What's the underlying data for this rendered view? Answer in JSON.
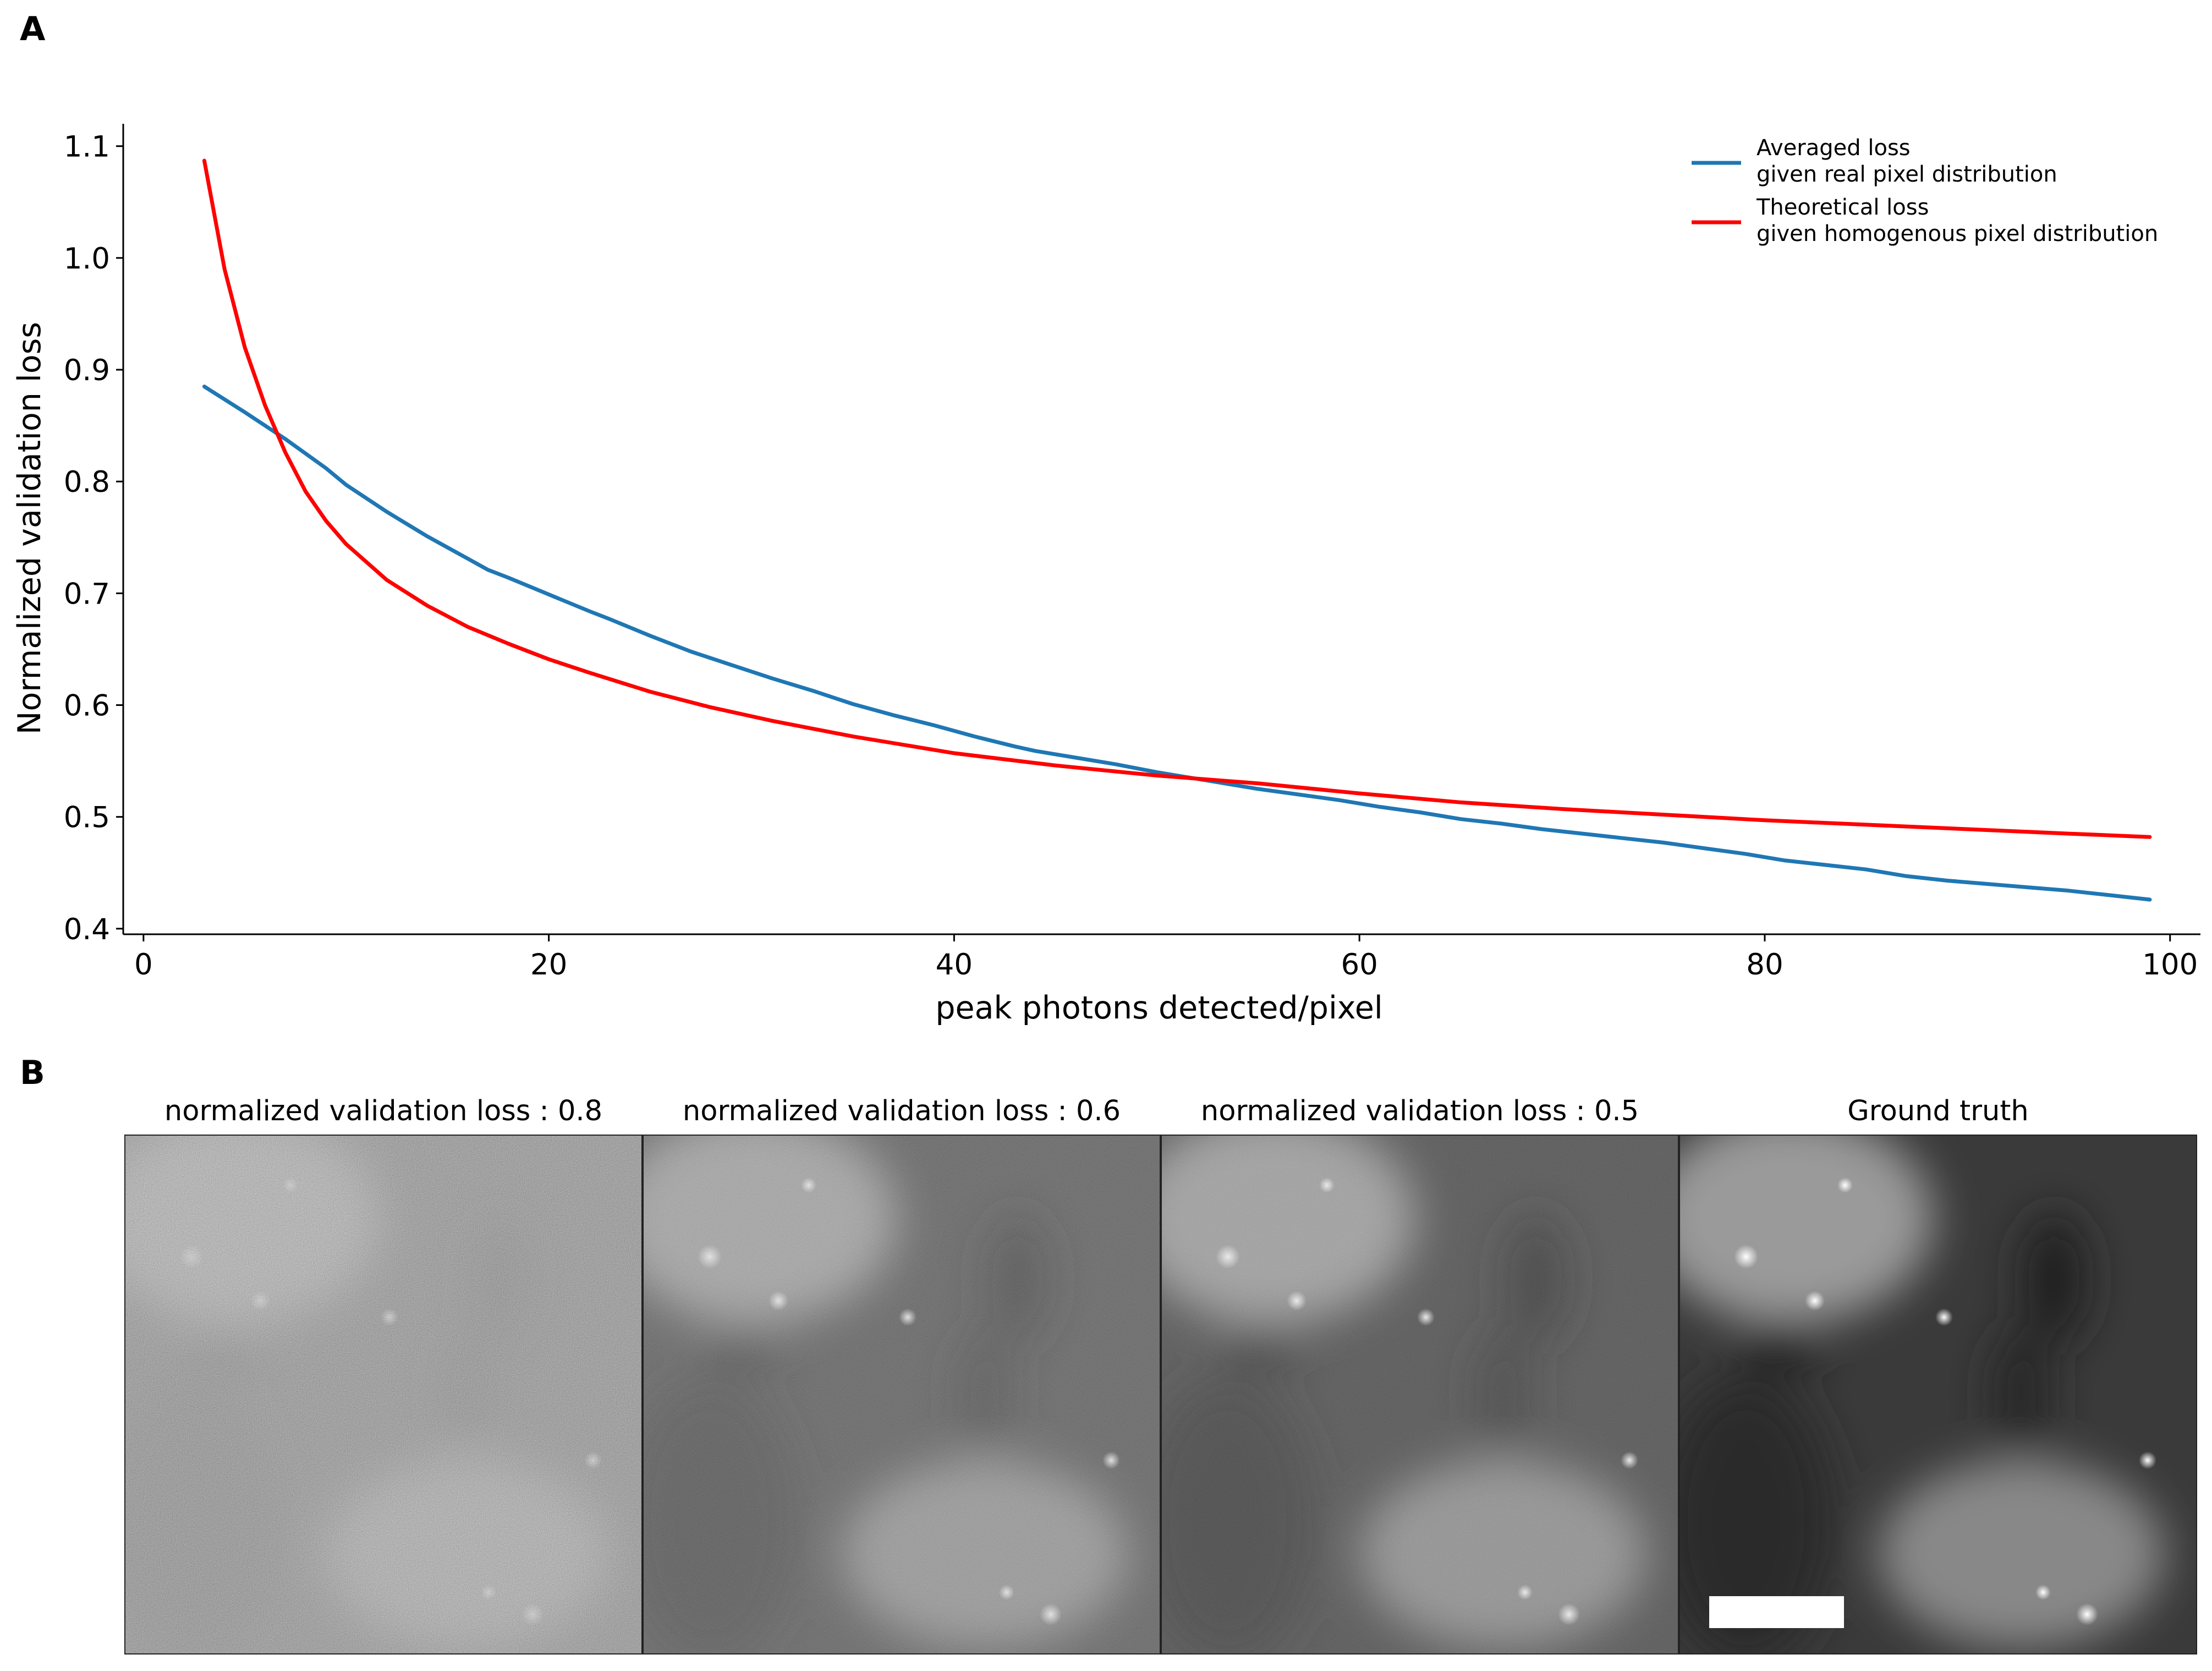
{
  "panel_labels": {
    "a": "A",
    "b": "B"
  },
  "chart_data": {
    "type": "line",
    "title": "",
    "xlabel": "peak photons detected/pixel",
    "ylabel": "Normalized validation loss",
    "xlim": [
      -1,
      101.5
    ],
    "ylim": [
      0.395,
      1.12
    ],
    "xticks": [
      0,
      20,
      40,
      60,
      80,
      100
    ],
    "yticks": [
      0.4,
      0.5,
      0.6,
      0.7,
      0.8,
      0.9,
      1.0,
      1.1
    ],
    "ytick_labels": [
      "0.4",
      "0.5",
      "0.6",
      "0.7",
      "0.8",
      "0.9",
      "1.0",
      "1.1"
    ],
    "grid": false,
    "legend_position": "top-right",
    "series": [
      {
        "name": "Averaged loss\ngiven real pixel distribution",
        "color": "#1f77b4",
        "x": [
          3,
          5,
          7,
          9,
          10,
          12,
          13,
          14,
          15,
          16,
          17,
          18,
          20,
          22,
          23,
          25,
          27,
          29,
          31,
          33,
          35,
          37,
          39,
          41,
          43,
          44,
          46,
          48,
          50,
          52,
          53,
          55,
          57,
          59,
          60,
          61,
          63,
          65,
          67,
          69,
          71,
          73,
          75,
          77,
          79,
          81,
          83,
          85,
          87,
          89,
          91,
          93,
          95,
          97,
          99
        ],
        "values": [
          0.885,
          0.862,
          0.838,
          0.812,
          0.797,
          0.773,
          0.762,
          0.751,
          0.741,
          0.731,
          0.721,
          0.714,
          0.699,
          0.684,
          0.677,
          0.662,
          0.648,
          0.636,
          0.624,
          0.613,
          0.601,
          0.591,
          0.582,
          0.572,
          0.563,
          0.559,
          0.553,
          0.547,
          0.54,
          0.534,
          0.531,
          0.525,
          0.52,
          0.515,
          0.512,
          0.509,
          0.504,
          0.498,
          0.494,
          0.489,
          0.485,
          0.481,
          0.477,
          0.472,
          0.467,
          0.461,
          0.457,
          0.453,
          0.447,
          0.443,
          0.44,
          0.437,
          0.434,
          0.43,
          0.426
        ]
      },
      {
        "name": "Theoretical loss\ngiven homogenous pixel distribution",
        "color": "#ff0000",
        "x": [
          3,
          4,
          5,
          6,
          7,
          8,
          9,
          10,
          12,
          14,
          16,
          18,
          20,
          22,
          25,
          28,
          31,
          35,
          40,
          45,
          50,
          55,
          60,
          65,
          70,
          75,
          80,
          85,
          90,
          95,
          99
        ],
        "values": [
          1.087,
          0.99,
          0.92,
          0.868,
          0.826,
          0.791,
          0.765,
          0.744,
          0.712,
          0.689,
          0.67,
          0.655,
          0.641,
          0.629,
          0.612,
          0.598,
          0.586,
          0.572,
          0.557,
          0.546,
          0.537,
          0.53,
          0.521,
          0.513,
          0.507,
          0.502,
          0.497,
          0.493,
          0.489,
          0.485,
          0.482
        ]
      }
    ]
  },
  "images": [
    {
      "title": "normalized validation loss : 0.8",
      "noise": 0.8,
      "scale_bar": false
    },
    {
      "title": "normalized validation loss : 0.6",
      "noise": 0.45,
      "scale_bar": false
    },
    {
      "title": "normalized validation loss : 0.5",
      "noise": 0.32,
      "scale_bar": false
    },
    {
      "title": "Ground truth",
      "noise": 0.0,
      "scale_bar": true
    }
  ]
}
